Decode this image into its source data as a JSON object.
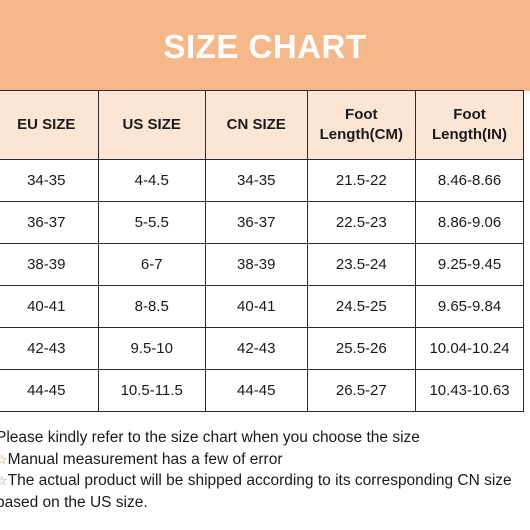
{
  "banner": {
    "title": "SIZE CHART",
    "background": "#f6b888"
  },
  "table": {
    "headers": [
      {
        "line1": "EU SIZE",
        "line2": ""
      },
      {
        "line1": "US SIZE",
        "line2": ""
      },
      {
        "line1": "CN SIZE",
        "line2": ""
      },
      {
        "line1": "Foot",
        "line2": "Length(CM)"
      },
      {
        "line1": "Foot",
        "line2": "Length(IN)"
      }
    ],
    "rows": [
      [
        "34-35",
        "4-4.5",
        "34-35",
        "21.5-22",
        "8.46-8.66"
      ],
      [
        "36-37",
        "5-5.5",
        "36-37",
        "22.5-23",
        "8.86-9.06"
      ],
      [
        "38-39",
        "6-7",
        "38-39",
        "23.5-24",
        "9.25-9.45"
      ],
      [
        "40-41",
        "8-8.5",
        "40-41",
        "24.5-25",
        "9.65-9.84"
      ],
      [
        "42-43",
        "9.5-10",
        "42-43",
        "25.5-26",
        "10.04-10.24"
      ],
      [
        "44-45",
        "10.5-11.5",
        "44-45",
        "26.5-27",
        "10.43-10.63"
      ]
    ]
  },
  "notes": [
    {
      "icon": "",
      "text": "Please kindly refer to the size chart when you choose the size"
    },
    {
      "icon": "star-icon",
      "text": "Manual measurement has a few of error"
    },
    {
      "icon": "star-icon",
      "text": "The actual product will be shipped according to its corresponding CN size"
    },
    {
      "icon": "",
      "text": "based on the US size."
    }
  ]
}
